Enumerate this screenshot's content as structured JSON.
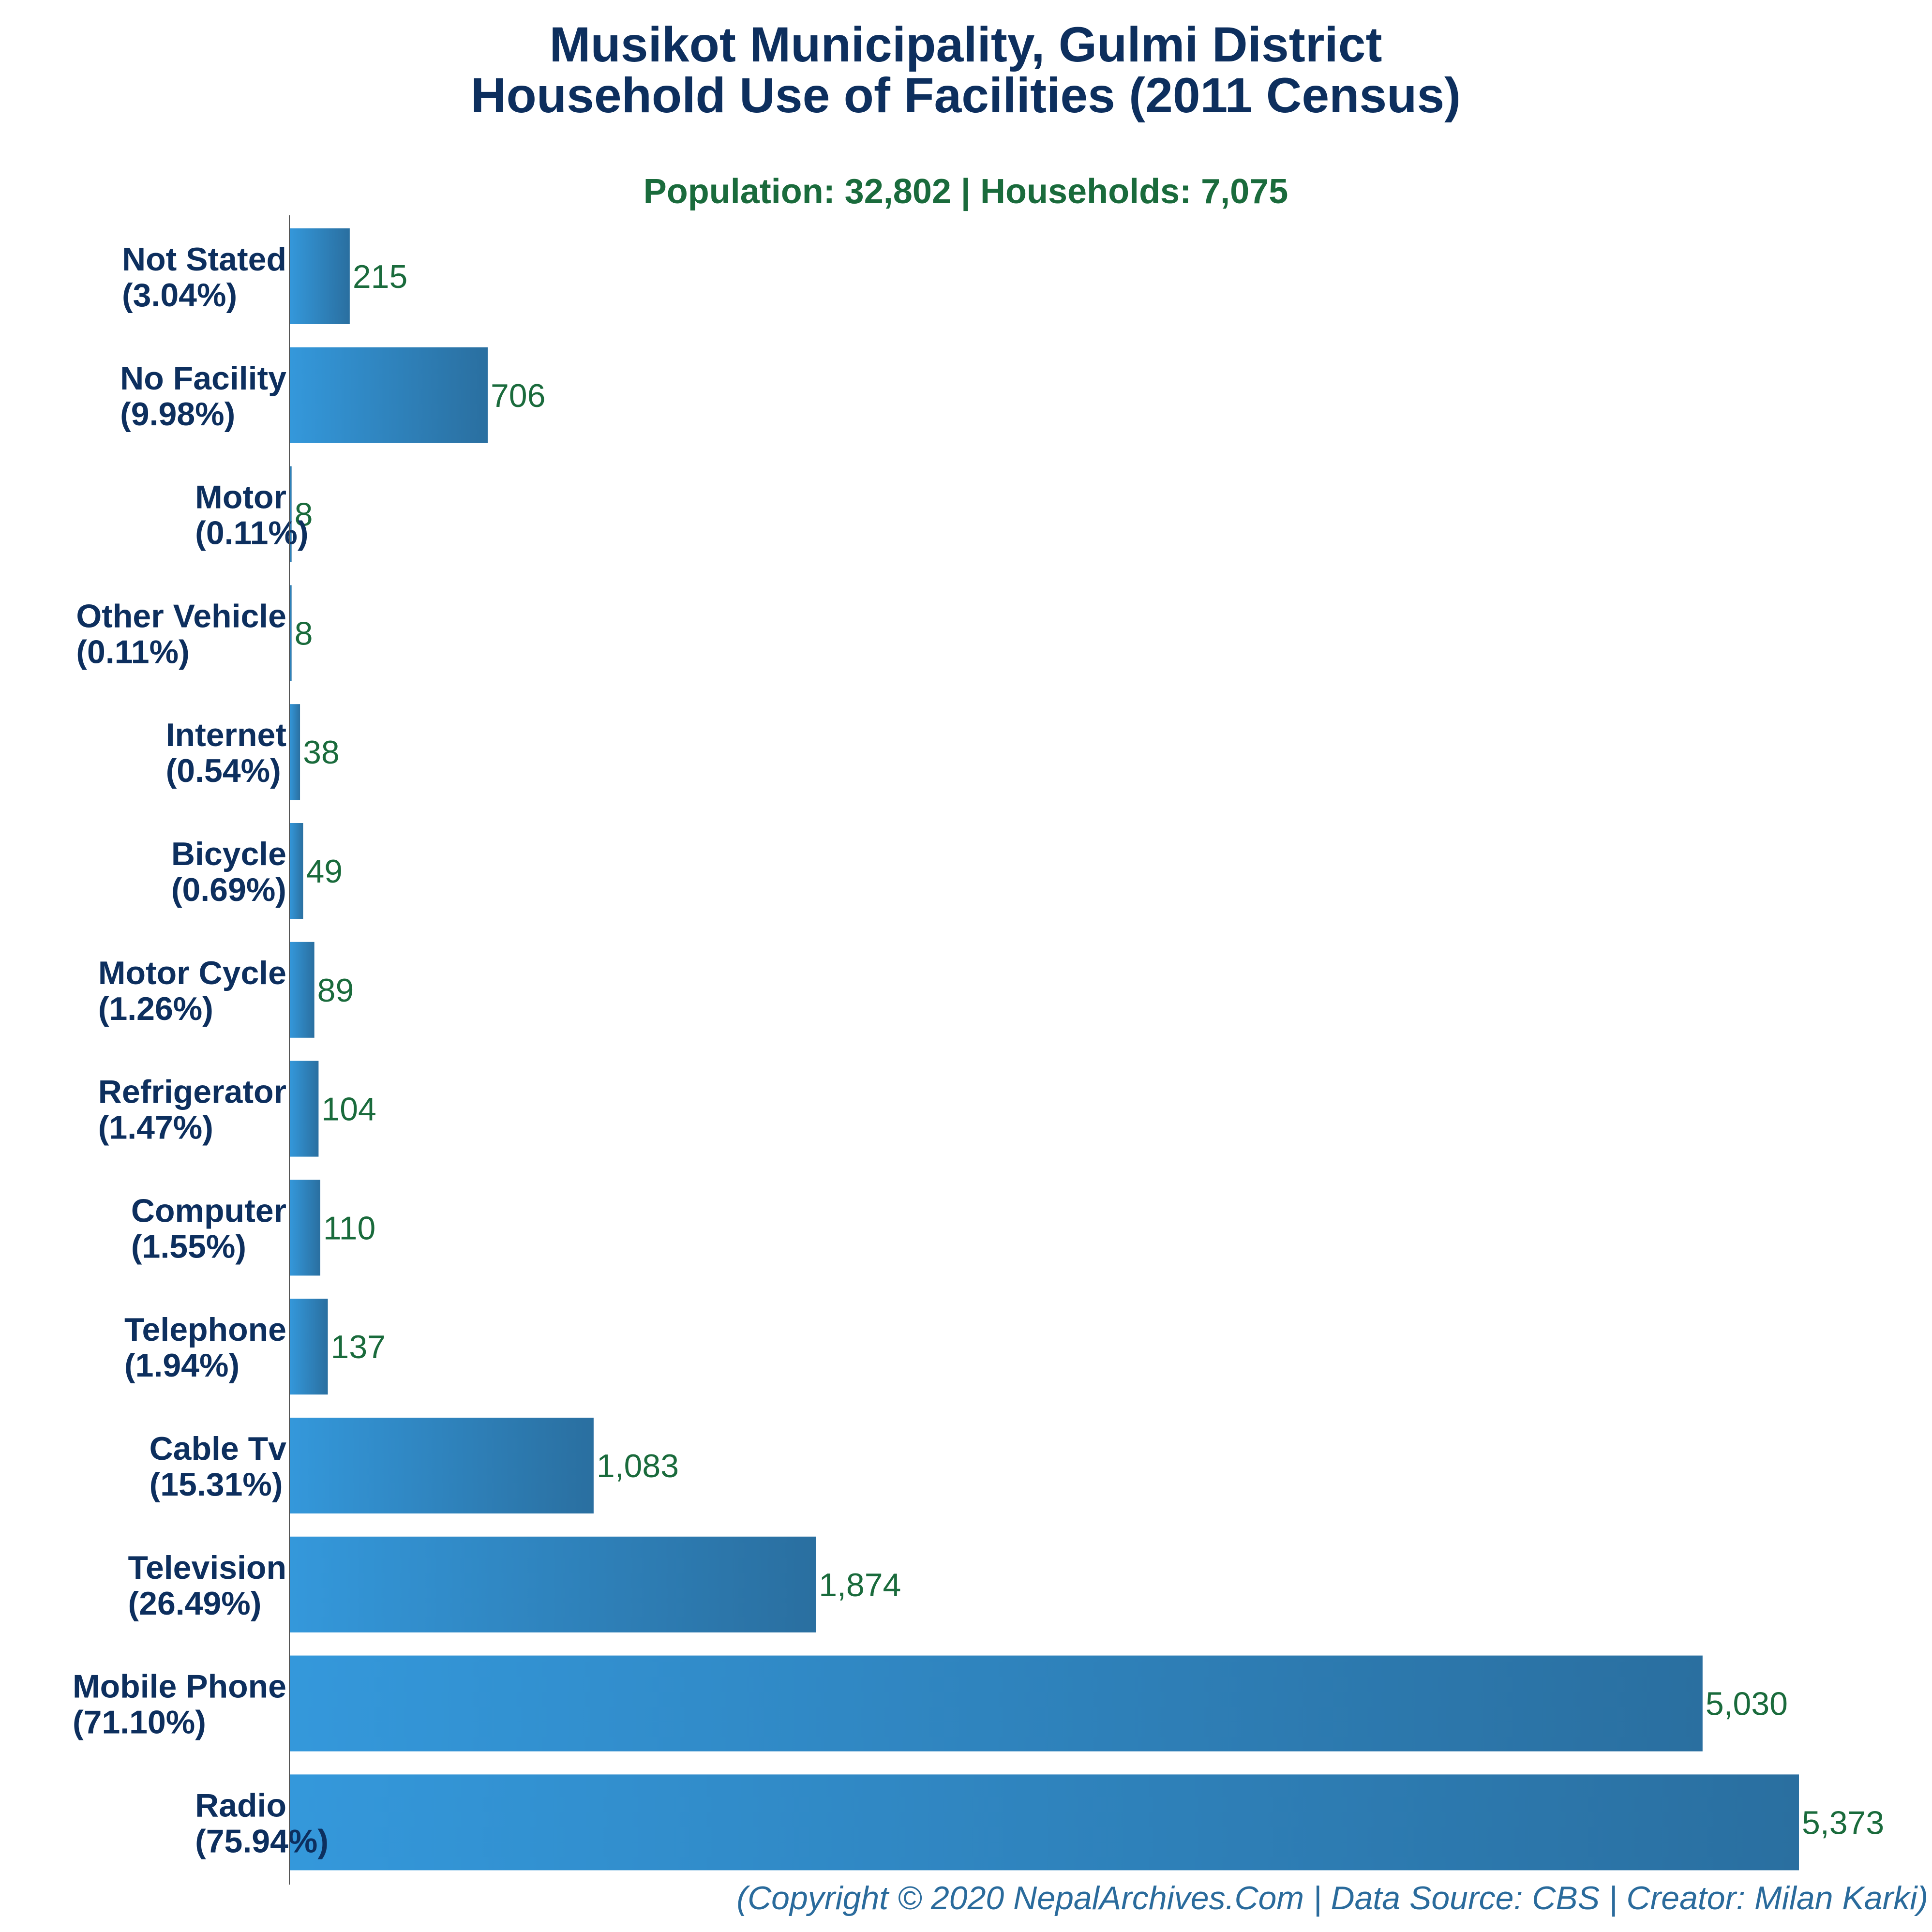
{
  "chart_data": {
    "type": "bar",
    "orientation": "horizontal",
    "title": [
      "Musikot Municipality, Gulmi District",
      "Household Use of Facilities (2011 Census)"
    ],
    "subtitle": "Population: 32,802 | Households: 7,075",
    "footer": "(Copyright © 2020 NepalArchives.Com | Data Source: CBS | Creator: Milan Karki)",
    "categories": [
      {
        "name": "Not Stated",
        "pct": "(3.04%)",
        "value": 215,
        "value_label": "215"
      },
      {
        "name": "No Facility",
        "pct": "(9.98%)",
        "value": 706,
        "value_label": "706"
      },
      {
        "name": "Motor",
        "pct": "(0.11%)",
        "value": 8,
        "value_label": "8"
      },
      {
        "name": "Other Vehicle",
        "pct": "(0.11%)",
        "value": 8,
        "value_label": "8"
      },
      {
        "name": "Internet",
        "pct": "(0.54%)",
        "value": 38,
        "value_label": "38"
      },
      {
        "name": "Bicycle",
        "pct": "(0.69%)",
        "value": 49,
        "value_label": "49"
      },
      {
        "name": "Motor Cycle",
        "pct": "(1.26%)",
        "value": 89,
        "value_label": "89"
      },
      {
        "name": "Refrigerator",
        "pct": "(1.47%)",
        "value": 104,
        "value_label": "104"
      },
      {
        "name": "Computer",
        "pct": "(1.55%)",
        "value": 110,
        "value_label": "110"
      },
      {
        "name": "Telephone",
        "pct": "(1.94%)",
        "value": 137,
        "value_label": "137"
      },
      {
        "name": "Cable Tv",
        "pct": "(15.31%)",
        "value": 1083,
        "value_label": "1,083"
      },
      {
        "name": "Television",
        "pct": "(26.49%)",
        "value": 1874,
        "value_label": "1,874"
      },
      {
        "name": "Mobile Phone",
        "pct": "(71.10%)",
        "value": 5030,
        "value_label": "5,030"
      },
      {
        "name": "Radio",
        "pct": "(75.94%)",
        "value": 5373,
        "value_label": "5,373"
      }
    ],
    "grid": false,
    "colors": {
      "bar_light": "#3498db",
      "bar_dark": "#2a6fa0",
      "title": "#0d2f5e",
      "subtitle": "#1a6b3c",
      "value_label": "#1a6b3c",
      "footer": "#2a6b9c",
      "axis": "#555555"
    }
  }
}
